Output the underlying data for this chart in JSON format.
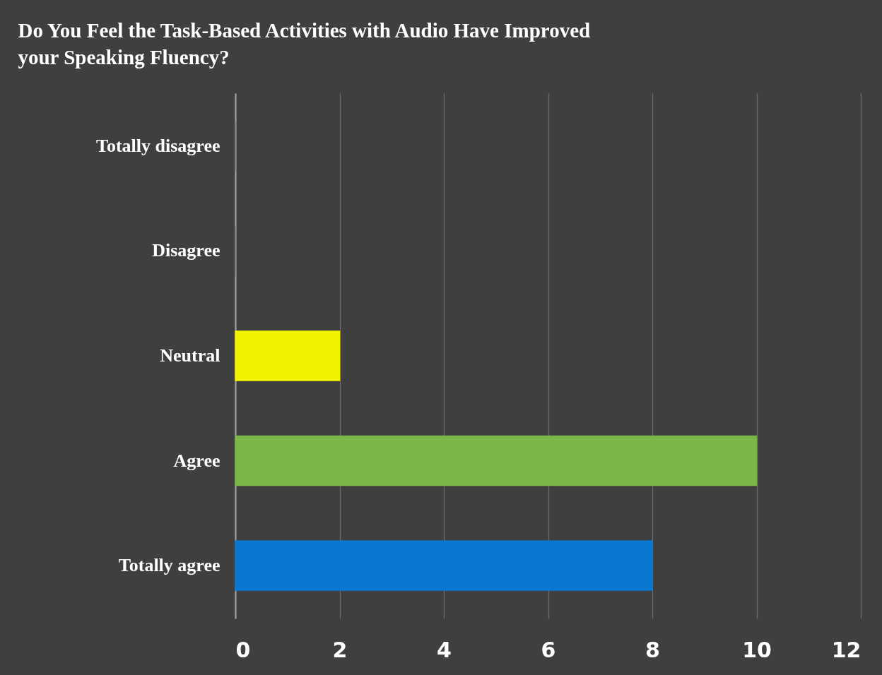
{
  "chart_data": {
    "type": "bar",
    "orientation": "horizontal",
    "title": "Do You Feel the Task-Based Activities with Audio Have Improved your Speaking Fluency?",
    "categories": [
      "Totally disagree",
      "Disagree",
      "Neutral",
      "Agree",
      "Totally agree"
    ],
    "values": [
      0,
      0,
      2,
      10,
      8
    ],
    "colors": [
      "#7f7f7f",
      "#7f7f7f",
      "#f2f200",
      "#7ab648",
      "#0a78d0"
    ],
    "xlim": [
      0,
      12
    ],
    "xticks": [
      0,
      2,
      4,
      6,
      8,
      10,
      12
    ],
    "grid": "x"
  }
}
